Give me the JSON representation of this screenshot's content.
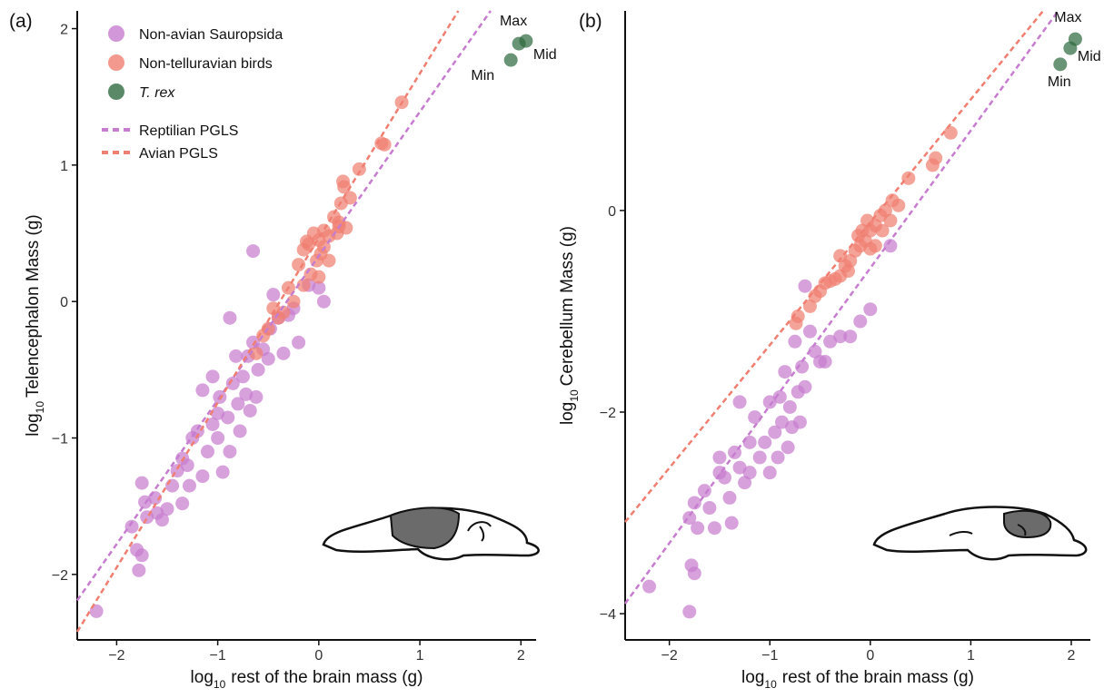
{
  "chart_data": [
    {
      "type": "scatter",
      "panel_label": "(a)",
      "xlabel": {
        "log": "log",
        "base": "10",
        "text": "rest of the brain mass (g)"
      },
      "ylabel": {
        "log": "log",
        "base": "10",
        "text": "Telencephalon Mass (g)"
      },
      "xlim": [
        -2.39,
        2.15
      ],
      "ylim": [
        -2.48,
        2.13
      ],
      "xticks": [
        {
          "value": -2,
          "label": "−2"
        },
        {
          "value": -1,
          "label": "−1"
        },
        0,
        1,
        2
      ],
      "yticks": [
        {
          "value": -2,
          "label": "−2"
        },
        {
          "value": -1,
          "label": "−1"
        },
        0,
        1,
        2
      ],
      "legend": "top-left",
      "series": [
        {
          "name": "Non-avian Sauropsida",
          "color": "#c77dcf",
          "x": [
            -2.2,
            -1.78,
            -1.75,
            -1.8,
            -1.85,
            -1.7,
            -1.75,
            -1.72,
            -1.62,
            -1.6,
            -1.55,
            -1.5,
            -1.45,
            -1.4,
            -1.35,
            -1.3,
            -1.28,
            -1.25,
            -1.2,
            -1.15,
            -1.1,
            -1.05,
            -1.0,
            -0.98,
            -0.95,
            -0.9,
            -0.88,
            -0.85,
            -0.8,
            -0.78,
            -0.75,
            -0.72,
            -0.7,
            -0.68,
            -0.65,
            -0.62,
            -0.6,
            -0.55,
            -0.5,
            -0.48,
            -0.45,
            -0.4,
            -0.35,
            -0.3,
            -0.25,
            -0.2,
            -0.1,
            0.0,
            0.05,
            -0.65,
            -1.05,
            -1.15,
            -1.35,
            -0.88,
            -0.82,
            -1.0
          ],
          "y": [
            -2.27,
            -1.97,
            -1.86,
            -1.82,
            -1.65,
            -1.58,
            -1.33,
            -1.47,
            -1.44,
            -1.55,
            -1.6,
            -1.52,
            -1.35,
            -1.24,
            -1.48,
            -1.2,
            -1.35,
            -1.0,
            -0.95,
            -1.28,
            -1.1,
            -0.9,
            -1.0,
            -0.7,
            -1.25,
            -0.85,
            -1.1,
            -0.6,
            -0.75,
            -0.95,
            -0.55,
            -0.68,
            -0.4,
            -0.8,
            -0.3,
            -0.7,
            -0.5,
            -0.35,
            -0.42,
            -0.2,
            0.05,
            -0.12,
            -0.38,
            -0.1,
            -0.05,
            -0.3,
            0.12,
            0.1,
            0.0,
            0.37,
            -0.55,
            -0.65,
            -1.15,
            -0.12,
            -0.4,
            -0.82
          ]
        },
        {
          "name": "Non-telluravian birds",
          "color": "#f07f72",
          "x": [
            0.82,
            0.65,
            0.62,
            0.4,
            0.31,
            0.24,
            0.25,
            0.22,
            0.2,
            0.27,
            0.15,
            0.1,
            0.05,
            0.0,
            -0.05,
            -0.1,
            -0.15,
            -0.12,
            0.05,
            0.02,
            -0.02,
            0.1,
            -0.2,
            -0.08,
            0.0,
            -0.15,
            -0.3,
            -0.25,
            -0.35,
            -0.4,
            -0.5,
            -0.55,
            -0.62,
            -0.45,
            0.2,
            0.18
          ],
          "y": [
            1.46,
            1.15,
            1.16,
            0.97,
            0.76,
            0.88,
            0.84,
            0.72,
            0.58,
            0.54,
            0.62,
            0.48,
            0.52,
            0.45,
            0.5,
            0.42,
            0.38,
            0.44,
            0.4,
            0.35,
            0.3,
            0.3,
            0.27,
            0.2,
            0.18,
            0.12,
            0.1,
            0.0,
            -0.08,
            -0.12,
            -0.2,
            -0.25,
            -0.38,
            -0.05,
            0.55,
            0.5
          ]
        },
        {
          "name": "T. rex",
          "color": "#2f6b40",
          "italic": true,
          "labels": [
            "Max",
            "Mid",
            "Min"
          ],
          "x": [
            1.98,
            2.05,
            1.9
          ],
          "y": [
            1.89,
            1.91,
            1.77
          ]
        }
      ],
      "lines": [
        {
          "name": "Reptilian PGLS",
          "color": "#c77dcf",
          "x": [
            -2.39,
            1.7
          ],
          "y": [
            -2.19,
            2.13
          ]
        },
        {
          "name": "Avian PGLS",
          "color": "#f07f72",
          "x": [
            -2.39,
            1.38
          ],
          "y": [
            -2.42,
            2.13
          ]
        }
      ]
    },
    {
      "type": "scatter",
      "panel_label": "(b)",
      "xlabel": {
        "log": "log",
        "base": "10",
        "text": "rest of the brain mass (g)"
      },
      "ylabel": {
        "log": "log",
        "base": "10",
        "text": "Cerebellum Mass (g)"
      },
      "xlim": [
        -2.44,
        2.19
      ],
      "ylim": [
        -4.26,
        1.98
      ],
      "xticks": [
        {
          "value": -2,
          "label": "−2"
        },
        {
          "value": -1,
          "label": "−1"
        },
        0,
        1,
        2
      ],
      "yticks": [
        {
          "value": -4,
          "label": "−4"
        },
        {
          "value": -2,
          "label": "−2"
        },
        0
      ],
      "series": [
        {
          "color": "#c77dcf",
          "x": [
            -2.2,
            -1.8,
            -1.75,
            -1.78,
            -1.8,
            -1.75,
            -1.72,
            -1.65,
            -1.6,
            -1.55,
            -1.5,
            -1.45,
            -1.4,
            -1.38,
            -1.35,
            -1.3,
            -1.25,
            -1.2,
            -1.2,
            -1.15,
            -1.1,
            -1.05,
            -1.0,
            -1.0,
            -0.95,
            -0.92,
            -0.9,
            -0.88,
            -0.85,
            -0.82,
            -0.8,
            -0.78,
            -0.75,
            -0.72,
            -0.7,
            -0.68,
            -0.65,
            -0.6,
            -0.55,
            -0.5,
            -0.45,
            -0.4,
            -0.3,
            -0.2,
            -0.1,
            0.0,
            0.2,
            -0.65,
            -1.3,
            -1.5
          ],
          "y": [
            -3.73,
            -3.98,
            -3.6,
            -3.52,
            -3.05,
            -2.9,
            -3.15,
            -2.78,
            -2.95,
            -3.15,
            -2.45,
            -2.65,
            -2.85,
            -3.1,
            -2.4,
            -2.55,
            -2.7,
            -2.3,
            -2.6,
            -2.05,
            -2.45,
            -2.3,
            -1.9,
            -2.6,
            -2.2,
            -2.45,
            -1.85,
            -2.1,
            -1.6,
            -2.35,
            -1.95,
            -2.15,
            -1.3,
            -1.8,
            -2.1,
            -1.55,
            -1.75,
            -1.2,
            -1.4,
            -1.5,
            -1.5,
            -1.3,
            -1.25,
            -1.25,
            -1.1,
            -0.98,
            -0.35,
            -0.75,
            -1.9,
            -2.6
          ]
        },
        {
          "color": "#f07f72",
          "x": [
            0.8,
            0.65,
            0.62,
            0.38,
            0.22,
            0.28,
            0.2,
            0.15,
            0.1,
            0.05,
            0.0,
            -0.03,
            -0.05,
            -0.1,
            -0.12,
            -0.15,
            0.05,
            0.0,
            -0.2,
            -0.22,
            -0.25,
            -0.3,
            -0.35,
            -0.4,
            -0.45,
            -0.5,
            -0.55,
            -0.6,
            -0.72,
            -0.74,
            -0.3,
            0.12,
            -0.08
          ],
          "y": [
            0.77,
            0.52,
            0.45,
            0.32,
            0.1,
            0.05,
            -0.1,
            0.0,
            -0.05,
            -0.15,
            -0.2,
            -0.1,
            -0.3,
            -0.35,
            -0.25,
            -0.4,
            -0.35,
            -0.38,
            -0.5,
            -0.6,
            -0.55,
            -0.65,
            -0.68,
            -0.7,
            -0.72,
            -0.8,
            -0.85,
            -0.95,
            -1.05,
            -1.12,
            -0.45,
            -0.2,
            -0.2
          ]
        },
        {
          "color": "#2f6b40",
          "labels": [
            "Max",
            "Mid",
            "Min"
          ],
          "x": [
            2.04,
            1.99,
            1.89
          ],
          "y": [
            1.7,
            1.61,
            1.45
          ]
        }
      ],
      "lines": [
        {
          "color": "#c77dcf",
          "x": [
            -2.44,
            1.87
          ],
          "y": [
            -3.9,
            1.98
          ]
        },
        {
          "color": "#f07f72",
          "x": [
            -2.44,
            1.72
          ],
          "y": [
            -3.09,
            1.98
          ]
        }
      ]
    }
  ]
}
